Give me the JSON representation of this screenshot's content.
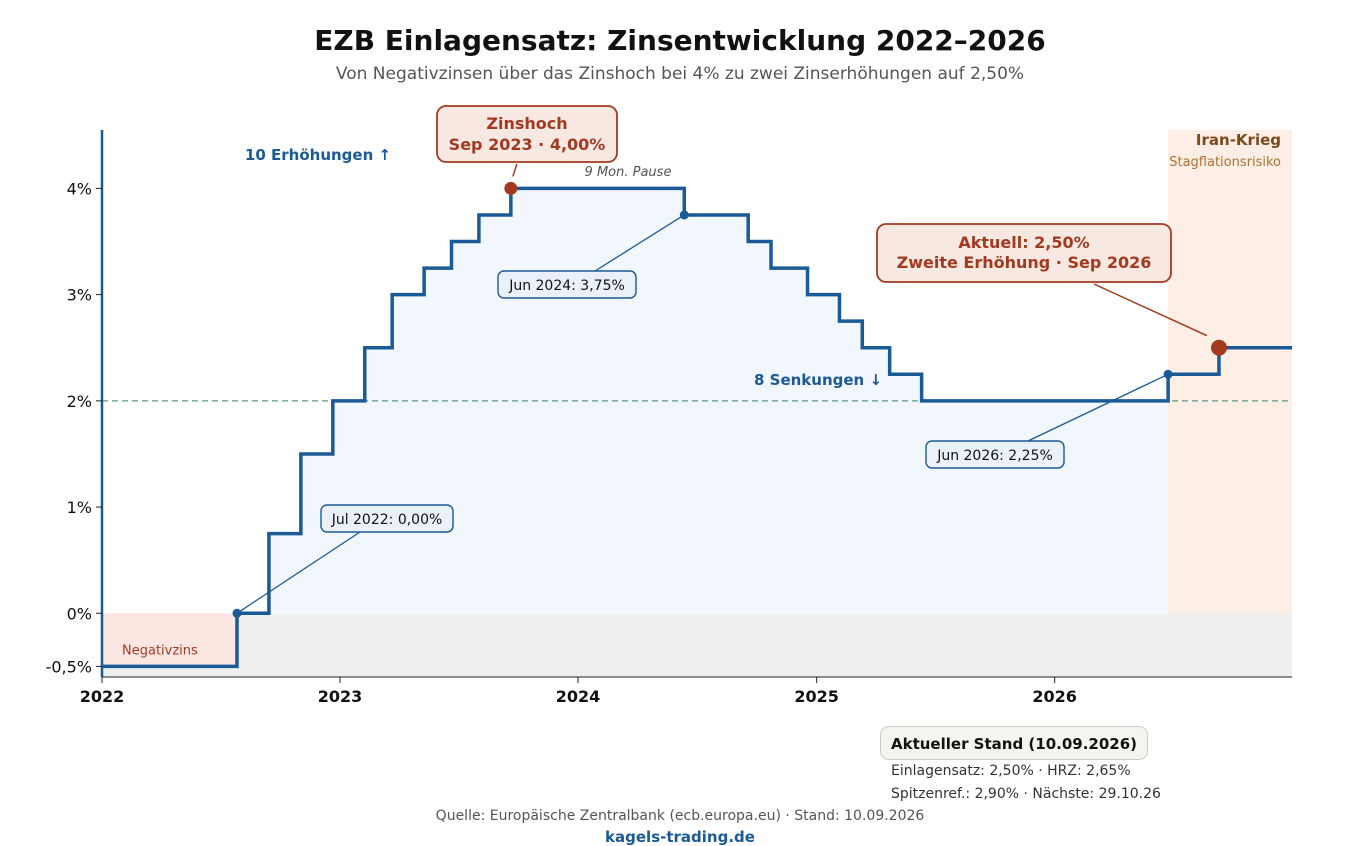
{
  "header": {
    "title": "EZB Einlagensatz: Zinsentwicklung 2022–2026",
    "subtitle": "Von Negativzinsen über das Zinshoch bei 4% zu zwei Zinserhöhungen auf 2,50%"
  },
  "chart_data": {
    "type": "line",
    "step": true,
    "x": [
      "2022-01-01",
      "2022-07-27",
      "2022-09-14",
      "2022-11-02",
      "2022-12-21",
      "2023-02-08",
      "2023-03-22",
      "2023-05-10",
      "2023-06-21",
      "2023-08-02",
      "2023-09-20",
      "2024-06-12",
      "2024-09-18",
      "2024-10-23",
      "2024-12-18",
      "2025-02-05",
      "2025-03-12",
      "2025-04-23",
      "2025-06-11",
      "2026-06-24",
      "2026-09-10",
      "2026-12-31"
    ],
    "values": [
      -0.5,
      0.0,
      0.75,
      1.5,
      2.0,
      2.5,
      3.0,
      3.25,
      3.5,
      3.75,
      4.0,
      3.75,
      3.5,
      3.25,
      3.0,
      2.75,
      2.5,
      2.25,
      2.0,
      2.25,
      2.5,
      2.5
    ],
    "series_color": "#1a5a96",
    "xlim": [
      "2022-01-01",
      "2026-12-31"
    ],
    "ylim": [
      -0.6,
      4.55
    ],
    "x_ticks": [
      {
        "date": "2022-01-01",
        "label": "2022"
      },
      {
        "date": "2023-01-01",
        "label": "2023"
      },
      {
        "date": "2024-01-01",
        "label": "2024"
      },
      {
        "date": "2025-01-01",
        "label": "2025"
      },
      {
        "date": "2026-01-01",
        "label": "2026"
      }
    ],
    "y_ticks": [
      {
        "value": -0.5,
        "label": "-0,5%"
      },
      {
        "value": 0,
        "label": "0%"
      },
      {
        "value": 1,
        "label": "1%"
      },
      {
        "value": 2,
        "label": "2%"
      },
      {
        "value": 3,
        "label": "3%"
      },
      {
        "value": 4,
        "label": "4%"
      }
    ],
    "reference_line": {
      "value": 2.0,
      "color": "#5a9a8a"
    },
    "regions": [
      {
        "name": "negativzins",
        "from": "2022-01-01",
        "to": "2022-07-27",
        "y_from": -0.5,
        "y_to": 0,
        "label": "Negativzins",
        "color": "#fbe6e2"
      },
      {
        "name": "iran-krieg",
        "from": "2026-06-24",
        "to": "2026-12-31",
        "label": "Iran-Krieg",
        "sublabel": "Stagflationsrisiko",
        "color": "#fdeee6"
      }
    ],
    "annotations": {
      "peak": {
        "date": "2023-09-20",
        "value": 4.0,
        "text1": "Zinshoch",
        "text2": "Sep 2023 · 4,00%"
      },
      "current": {
        "date": "2026-09-10",
        "value": 2.5,
        "text1": "Aktuell: 2,50%",
        "text2": "Zweite Erhöhung · Sep 2026"
      },
      "points": [
        {
          "date": "2022-07-27",
          "value": 0.0,
          "label": "Jul 2022: 0,00%"
        },
        {
          "date": "2024-06-12",
          "value": 3.75,
          "label": "Jun 2024: 3,75%"
        },
        {
          "date": "2026-06-24",
          "value": 2.25,
          "label": "Jun 2026: 2,25%"
        }
      ],
      "hikes": "10 Erhöhungen ↑",
      "cuts": "8 Senkungen ↓",
      "pause": "9 Mon. Pause"
    }
  },
  "status": {
    "title": "Aktueller Stand (10.09.2026)",
    "line1": "Einlagensatz: 2,50% · HRZ: 2,65%",
    "line2": "Spitzenref.: 2,90% · Nächste: 29.10.26"
  },
  "footer": {
    "source": "Quelle: Europäische Zentralbank (ecb.europa.eu) · Stand: 10.09.2026",
    "brand": "kagels-trading.de"
  }
}
